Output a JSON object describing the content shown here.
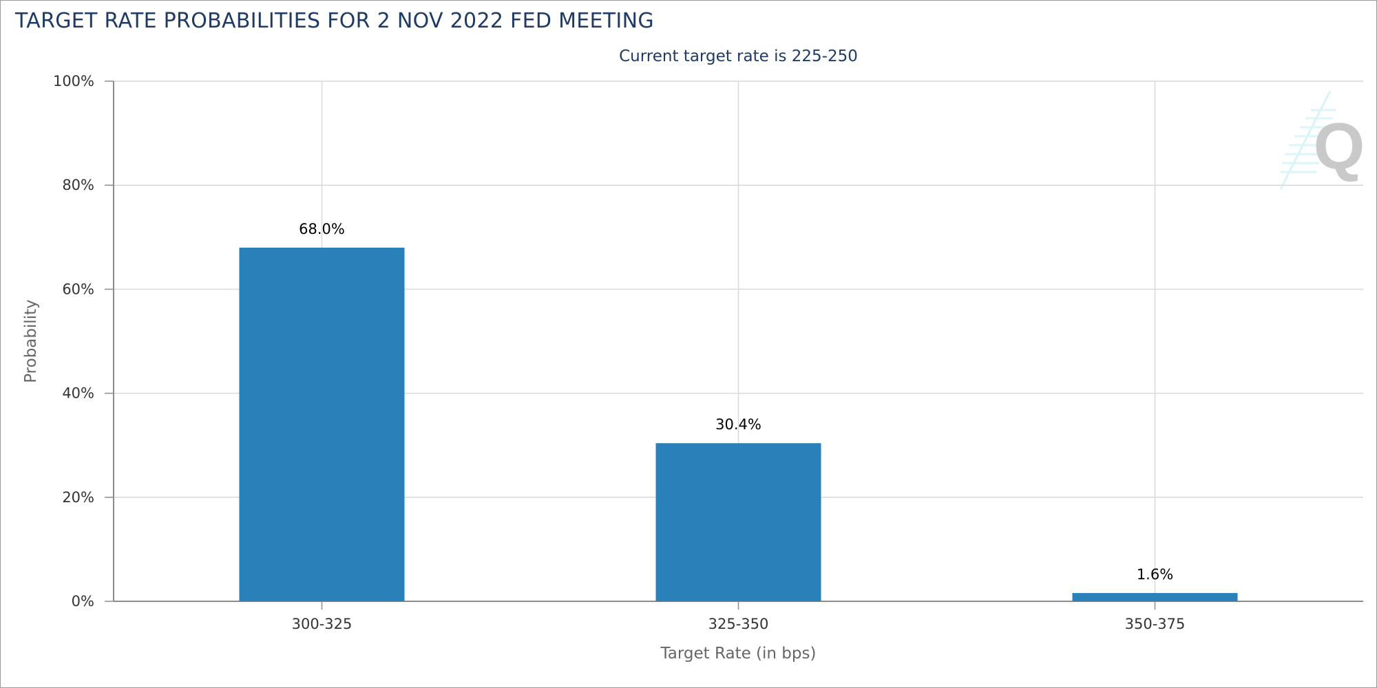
{
  "chart_data": {
    "type": "bar",
    "title": "TARGET RATE PROBABILITIES FOR 2 NOV 2022 FED MEETING",
    "subtitle": "Current target rate is 225-250",
    "xlabel": "Target Rate (in bps)",
    "ylabel": "Probability",
    "categories": [
      "300-325",
      "325-350",
      "350-375"
    ],
    "values": [
      68.0,
      30.4,
      1.6
    ],
    "data_labels": [
      "68.0%",
      "30.4%",
      "1.6%"
    ],
    "ylim": [
      0,
      100
    ],
    "yticks": [
      0,
      20,
      40,
      60,
      80,
      100
    ],
    "ytick_labels": [
      "0%",
      "20%",
      "40%",
      "60%",
      "80%",
      "100%"
    ],
    "grid": true,
    "legend": "none",
    "colors": {
      "bar": "#2a80b9",
      "title": "#1f3b64",
      "grid": "#d9d9d9",
      "axis": "#8c8c8c",
      "text": "#333333",
      "axis_title": "#666666"
    },
    "watermark_icon": "q-logo-icon"
  }
}
